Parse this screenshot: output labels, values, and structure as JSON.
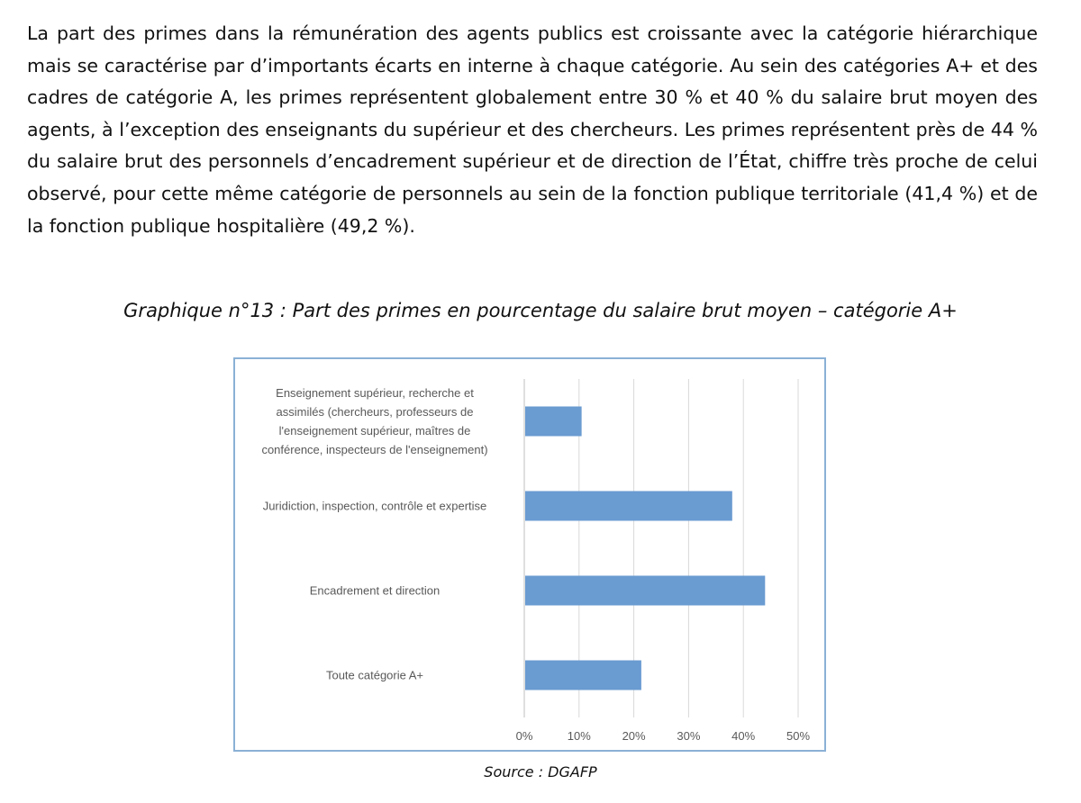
{
  "paragraph": "La part des primes dans la rémunération des agents publics est croissante avec la catégorie hiérarchique mais se caractérise par d’importants écarts en interne à chaque catégorie. Au sein des catégories A+ et des cadres de catégorie A, les primes représentent globalement entre 30 % et 40 % du salaire brut moyen des agents, à l’exception des enseignants du supérieur et des chercheurs. Les primes représentent près de 44 % du salaire brut des personnels d’encadrement supérieur et de direction de l’État, chiffre très proche de celui observé, pour cette même catégorie de personnels au sein de la fonction publique territoriale (41,4 %) et de la fonction publique hospitalière (49,2 %).",
  "caption": "Graphique n°13 : Part des primes en pourcentage du salaire brut moyen – catégorie A+",
  "source": "Source : DGAFP",
  "chart_data": {
    "type": "bar",
    "orientation": "horizontal",
    "categories": [
      [
        "Enseignement supérieur, recherche et",
        "assimilés (chercheurs, professeurs de",
        "l'enseignement supérieur, maîtres de",
        "conférence, inspecteurs de l'enseignement)"
      ],
      [
        "Juridiction, inspection, contrôle et expertise"
      ],
      [
        "Encadrement et direction"
      ],
      [
        "Toute catégorie A+"
      ]
    ],
    "values": [
      10.3,
      37.8,
      43.8,
      21.2
    ],
    "xlim": [
      0,
      50
    ],
    "ticks": [
      "0%",
      "10%",
      "20%",
      "30%",
      "40%",
      "50%"
    ],
    "tick_values": [
      0,
      10,
      20,
      30,
      40,
      50
    ],
    "bar_color": "#6a9bd1",
    "grid_color": "#d9d9d9",
    "grid": true
  }
}
